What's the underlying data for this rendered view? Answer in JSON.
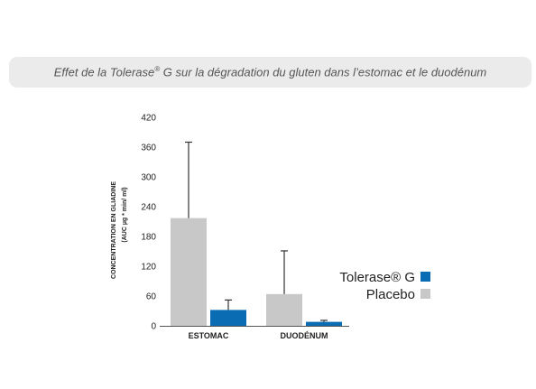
{
  "header": {
    "title_main": "Effet de la Tolerase",
    "title_sup": "®",
    "title_rest": " G sur la dégradation du gluten dans l’estomac et le duodénum"
  },
  "colors": {
    "tolerase": "#0a6db3",
    "placebo": "#c8c8c8",
    "axis": "#555555",
    "errorbar": "#333333",
    "title_bg": "#ebebeb"
  },
  "chart_data": {
    "type": "bar",
    "categories": [
      "ESTOMAC",
      "DUODÉNUM"
    ],
    "series": [
      {
        "name": "Placebo",
        "values": [
          217,
          64
        ],
        "error": [
          153,
          87
        ],
        "color": "#c8c8c8"
      },
      {
        "name": "Tolerase® G",
        "values": [
          32,
          8
        ],
        "error": [
          20,
          3
        ],
        "color": "#0a6db3"
      }
    ],
    "ylabel_line1": "CONCENTRATION EN GLIADINE",
    "ylabel_line2": "(AUC  µg * min/   ml)",
    "ylim": [
      0,
      420
    ],
    "yticks": [
      0,
      60,
      120,
      180,
      240,
      300,
      360,
      420
    ],
    "ytick_labels": [
      "0",
      "60",
      "120",
      "180",
      "240",
      "300",
      "360",
      "420"
    ],
    "grid": false,
    "legend": {
      "placement": "right",
      "entries": [
        {
          "label": "Tolerase® G",
          "color": "#0a6db3"
        },
        {
          "label": "Placebo",
          "color": "#c8c8c8"
        }
      ]
    }
  }
}
